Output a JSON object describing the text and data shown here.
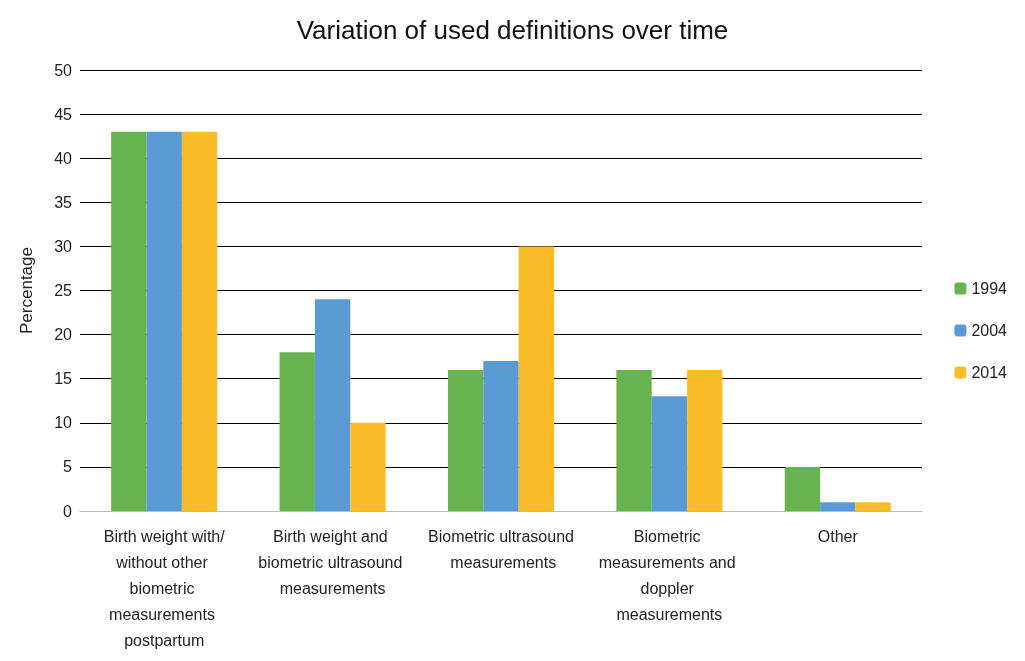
{
  "chart_data": {
    "type": "bar",
    "title": "Variation of used definitions over time",
    "ylabel": "Percentage",
    "categories": [
      "Birth weight with/without other biometric measurements postpartum",
      "Birth weight and biometric ultrasound measurements",
      "Biometric ultrasound measurements",
      "Biometric measurements and doppler measurements",
      "Other"
    ],
    "series": [
      {
        "name": "1994",
        "color": "#66b34f",
        "values": [
          43,
          18,
          16,
          16,
          5
        ]
      },
      {
        "name": "2004",
        "color": "#5b9bd5",
        "values": [
          43,
          24,
          17,
          13,
          1
        ]
      },
      {
        "name": "2014",
        "color": "#fbbc2a",
        "values": [
          43,
          10,
          30,
          16,
          1
        ]
      }
    ],
    "ylim": [
      0,
      50
    ],
    "yticks": [
      0,
      5,
      10,
      15,
      20,
      25,
      30,
      35,
      40,
      45,
      50
    ],
    "grid": "y",
    "legend": "right"
  }
}
